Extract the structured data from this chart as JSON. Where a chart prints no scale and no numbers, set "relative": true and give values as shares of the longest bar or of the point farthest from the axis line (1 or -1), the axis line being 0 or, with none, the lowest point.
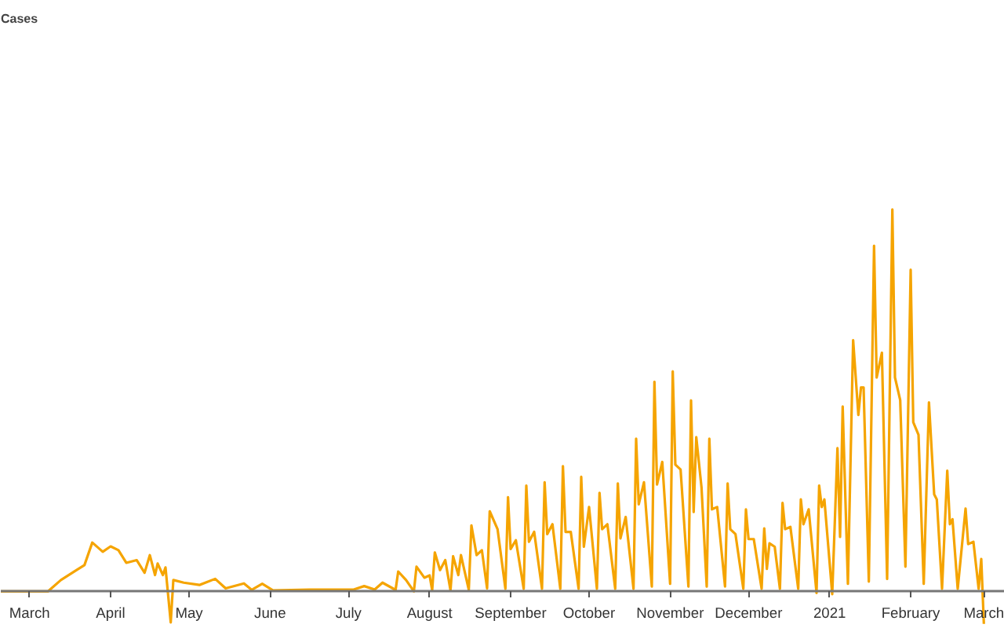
{
  "chart_data": {
    "type": "line",
    "annotations": [
      "Cases"
    ],
    "relative": true,
    "grid": false,
    "marker": "none",
    "line_style": "solid",
    "xlim": [
      "2020-02-19",
      "2021-03-09"
    ],
    "xticks": [
      {
        "value": "2020-03-01",
        "label": "March"
      },
      {
        "value": "2020-04-01",
        "label": "April"
      },
      {
        "value": "2020-05-01",
        "label": "May"
      },
      {
        "value": "2020-06-01",
        "label": "June"
      },
      {
        "value": "2020-07-01",
        "label": "July"
      },
      {
        "value": "2020-08-01",
        "label": "August"
      },
      {
        "value": "2020-09-01",
        "label": "September"
      },
      {
        "value": "2020-10-01",
        "label": "October"
      },
      {
        "value": "2020-11-01",
        "label": "November"
      },
      {
        "value": "2020-12-01",
        "label": "December"
      },
      {
        "value": "2021-01-01",
        "label": "2021"
      },
      {
        "value": "2021-02-01",
        "label": "February"
      },
      {
        "value": "2021-03-01",
        "label": "March"
      }
    ],
    "x": [
      "2020-02-19",
      "2020-03-08",
      "2020-03-13",
      "2020-03-19",
      "2020-03-22",
      "2020-03-25",
      "2020-03-29",
      "2020-04-01",
      "2020-04-04",
      "2020-04-07",
      "2020-04-11",
      "2020-04-14",
      "2020-04-16",
      "2020-04-18",
      "2020-04-19",
      "2020-04-21",
      "2020-04-22",
      "2020-04-24",
      "2020-04-25",
      "2020-04-29",
      "2020-05-05",
      "2020-05-11",
      "2020-05-15",
      "2020-05-22",
      "2020-05-25",
      "2020-05-29",
      "2020-06-02",
      "2020-06-16",
      "2020-07-03",
      "2020-07-07",
      "2020-07-11",
      "2020-07-14",
      "2020-07-19",
      "2020-07-20",
      "2020-07-23",
      "2020-07-26",
      "2020-07-27",
      "2020-07-30",
      "2020-08-01",
      "2020-08-02",
      "2020-08-03",
      "2020-08-05",
      "2020-08-07",
      "2020-08-09",
      "2020-08-10",
      "2020-08-12",
      "2020-08-13",
      "2020-08-16",
      "2020-08-17",
      "2020-08-19",
      "2020-08-21",
      "2020-08-23",
      "2020-08-24",
      "2020-08-27",
      "2020-08-30",
      "2020-08-31",
      "2020-09-01",
      "2020-09-03",
      "2020-09-06",
      "2020-09-07",
      "2020-09-08",
      "2020-09-10",
      "2020-09-13",
      "2020-09-14",
      "2020-09-15",
      "2020-09-17",
      "2020-09-20",
      "2020-09-21",
      "2020-09-22",
      "2020-09-24",
      "2020-09-27",
      "2020-09-28",
      "2020-09-29",
      "2020-10-01",
      "2020-10-04",
      "2020-10-05",
      "2020-10-06",
      "2020-10-08",
      "2020-10-11",
      "2020-10-12",
      "2020-10-13",
      "2020-10-15",
      "2020-10-18",
      "2020-10-19",
      "2020-10-20",
      "2020-10-22",
      "2020-10-25",
      "2020-10-26",
      "2020-10-27",
      "2020-10-29",
      "2020-11-01",
      "2020-11-02",
      "2020-11-03",
      "2020-11-05",
      "2020-11-08",
      "2020-11-09",
      "2020-11-10",
      "2020-11-11",
      "2020-11-13",
      "2020-11-15",
      "2020-11-16",
      "2020-11-17",
      "2020-11-19",
      "2020-11-22",
      "2020-11-23",
      "2020-11-24",
      "2020-11-26",
      "2020-11-29",
      "2020-11-30",
      "2020-12-01",
      "2020-12-03",
      "2020-12-06",
      "2020-12-07",
      "2020-12-08",
      "2020-12-09",
      "2020-12-11",
      "2020-12-13",
      "2020-12-14",
      "2020-12-15",
      "2020-12-17",
      "2020-12-20",
      "2020-12-21",
      "2020-12-22",
      "2020-12-24",
      "2020-12-27",
      "2020-12-28",
      "2020-12-29",
      "2020-12-30",
      "2021-01-02",
      "2021-01-04",
      "2021-01-05",
      "2021-01-06",
      "2021-01-08",
      "2021-01-10",
      "2021-01-12",
      "2021-01-13",
      "2021-01-14",
      "2021-01-16",
      "2021-01-18",
      "2021-01-19",
      "2021-01-21",
      "2021-01-23",
      "2021-01-25",
      "2021-01-26",
      "2021-01-28",
      "2021-01-30",
      "2021-02-01",
      "2021-02-02",
      "2021-02-04",
      "2021-02-06",
      "2021-02-08",
      "2021-02-10",
      "2021-02-11",
      "2021-02-13",
      "2021-02-15",
      "2021-02-16",
      "2021-02-17",
      "2021-02-19",
      "2021-02-22",
      "2021-02-23",
      "2021-02-25",
      "2021-02-27",
      "2021-02-28",
      "2021-03-01"
    ],
    "series": [
      {
        "color": "#f5a400",
        "values": [
          0,
          0,
          0.03,
          0.056,
          0.069,
          0.128,
          0.104,
          0.118,
          0.108,
          0.075,
          0.082,
          0.049,
          0.095,
          0.043,
          0.073,
          0.043,
          0.063,
          -0.081,
          0.03,
          0.023,
          0.017,
          0.033,
          0.008,
          0.021,
          0.004,
          0.02,
          0.003,
          0.005,
          0.005,
          0.014,
          0.005,
          0.023,
          0.004,
          0.052,
          0.03,
          0,
          0.065,
          0.036,
          0.042,
          0.003,
          0.102,
          0.056,
          0.082,
          0.003,
          0.092,
          0.043,
          0.095,
          0.004,
          0.173,
          0.095,
          0.108,
          0.008,
          0.21,
          0.163,
          0.007,
          0.247,
          0.111,
          0.134,
          0.007,
          0.277,
          0.13,
          0.156,
          0.007,
          0.286,
          0.15,
          0.176,
          0.007,
          0.328,
          0.156,
          0.156,
          0.007,
          0.3,
          0.117,
          0.221,
          0.007,
          0.258,
          0.163,
          0.176,
          0.007,
          0.283,
          0.139,
          0.195,
          0.007,
          0.4,
          0.228,
          0.286,
          0.013,
          0.549,
          0.28,
          0.339,
          0.02,
          0.576,
          0.332,
          0.319,
          0.013,
          0.5,
          0.208,
          0.404,
          0.273,
          0.013,
          0.4,
          0.215,
          0.221,
          0.013,
          0.283,
          0.163,
          0.15,
          0.007,
          0.215,
          0.137,
          0.137,
          0.007,
          0.165,
          0.059,
          0.126,
          0.117,
          0.007,
          0.232,
          0.163,
          0.169,
          0.007,
          0.241,
          0.176,
          0.215,
          -0.004,
          0.277,
          0.221,
          0.241,
          -0.007,
          0.375,
          0.143,
          0.484,
          0.02,
          0.658,
          0.462,
          0.534,
          0.534,
          0.026,
          0.905,
          0.56,
          0.625,
          0.033,
          1.0,
          0.56,
          0.501,
          0.065,
          0.842,
          0.443,
          0.41,
          0.02,
          0.495,
          0.254,
          0.241,
          0.007,
          0.316,
          0.176,
          0.189,
          0.007,
          0.217,
          0.124,
          0.13,
          0.007,
          0.085,
          -0.085
        ]
      }
    ]
  }
}
